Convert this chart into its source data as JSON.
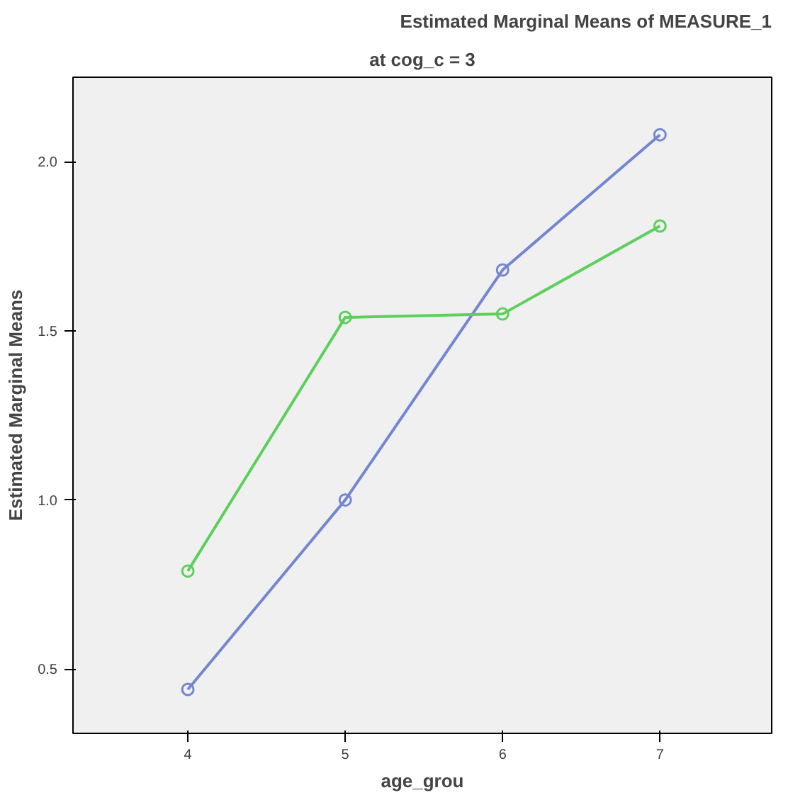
{
  "chart_data": {
    "type": "line",
    "title": "Estimated Marginal Means of MEASURE_1",
    "subtitle": "at cog_c = 3",
    "xlabel": "age_grou",
    "ylabel": "Estimated Marginal Means",
    "x": [
      4,
      5,
      6,
      7
    ],
    "series": [
      {
        "color": "#7586d0",
        "values": [
          0.44,
          1.0,
          1.68,
          2.08
        ]
      },
      {
        "color": "#5ccf5c",
        "values": [
          0.79,
          1.54,
          1.55,
          1.81
        ]
      }
    ],
    "xlim": [
      3.27,
      7.71
    ],
    "ylim": [
      0.31,
      2.25
    ],
    "xticks": [
      4,
      5,
      6,
      7
    ],
    "yticks": [
      {
        "value": 0.5,
        "label": "0.5"
      },
      {
        "value": 1.0,
        "label": "1.0"
      },
      {
        "value": 1.5,
        "label": "1.5"
      },
      {
        "value": 2.0,
        "label": "2.0"
      }
    ],
    "grid": false,
    "marker": "circle",
    "line_style": "solid"
  }
}
